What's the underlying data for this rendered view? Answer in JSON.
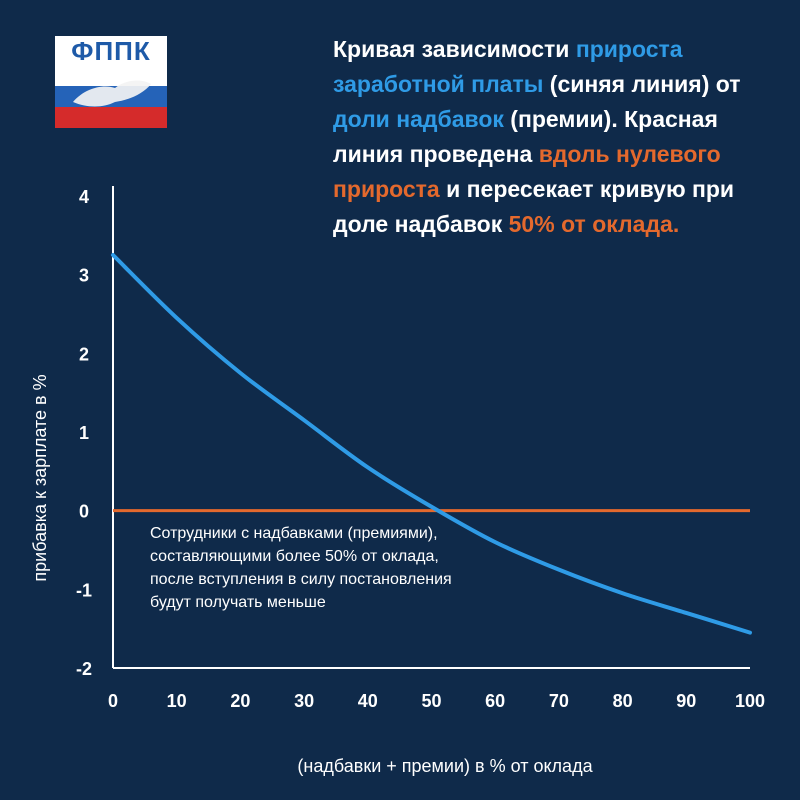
{
  "logo": {
    "text": "ФППК"
  },
  "headline": {
    "p1": "Кривая зависимости ",
    "p2": "прироста заработной платы",
    "p3": " (синяя линия) от ",
    "p4": "доли надбавок",
    "p5": " (премии). Красная линия проведена ",
    "p6": "вдоль нулевого прироста",
    "p7": " и пересекает кривую при доле надбавок ",
    "p8": "50% от оклада."
  },
  "annotation": "Сотрудники с надбавками (премиями), составляющими более 50% от оклада, после вступления в силу постановления будут получать меньше",
  "colors": {
    "background": "#0f2a4a",
    "curve": "#2f9be6",
    "zero_line": "#e4692d",
    "axis": "#ffffff"
  },
  "chart_data": {
    "type": "line",
    "title": "",
    "xlabel": "(надбавки + премии) в % от оклада",
    "ylabel": "прибавка к зарплате в %",
    "xlim": [
      0,
      100
    ],
    "ylim": [
      -2,
      4
    ],
    "x_ticks": [
      "0",
      "10",
      "20",
      "30",
      "40",
      "50",
      "60",
      "70",
      "80",
      "90",
      "100"
    ],
    "y_ticks": [
      "4",
      "3",
      "2",
      "1",
      "0",
      "-1",
      "-2"
    ],
    "grid": false,
    "series": [
      {
        "x": [
          0,
          10,
          20,
          30,
          40,
          50,
          60,
          70,
          80,
          90,
          100
        ],
        "y": [
          3.25,
          2.45,
          1.75,
          1.15,
          0.55,
          0.05,
          -0.4,
          -0.75,
          -1.05,
          -1.3,
          -1.55
        ],
        "color": "#2f9be6"
      },
      {
        "x": [
          0,
          100
        ],
        "y": [
          0,
          0
        ],
        "color": "#e4692d"
      }
    ]
  }
}
